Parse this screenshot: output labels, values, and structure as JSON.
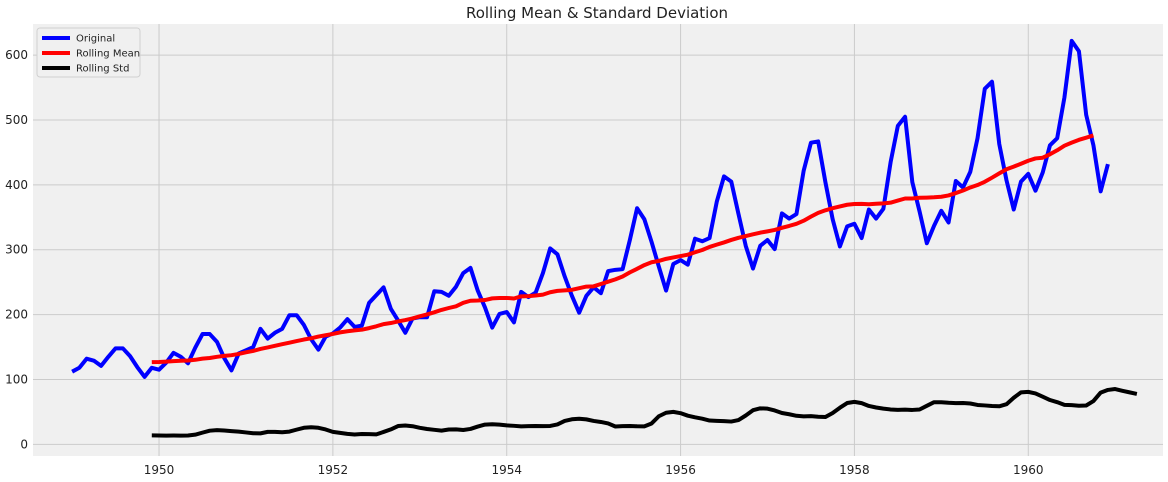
{
  "chart_data": {
    "type": "line",
    "title": "Rolling Mean & Standard Deviation",
    "xlabel": "",
    "ylabel": "",
    "xlim": [
      1948.55,
      1961.55
    ],
    "ylim": [
      -18,
      648
    ],
    "x_ticks": [
      1950,
      1952,
      1954,
      1956,
      1958,
      1960
    ],
    "y_ticks": [
      0,
      100,
      200,
      300,
      400,
      500,
      600
    ],
    "grid": true,
    "legend_position": "top-left",
    "x_start": 1949.0,
    "x_step": 0.08333,
    "series": [
      {
        "name": "Original",
        "color": "#0000ff",
        "values": [
          112,
          118,
          132,
          129,
          121,
          135,
          148,
          148,
          136,
          119,
          104,
          118,
          115,
          126,
          141,
          135,
          125,
          149,
          170,
          170,
          158,
          133,
          114,
          140,
          145,
          150,
          178,
          163,
          172,
          178,
          199,
          199,
          184,
          162,
          146,
          166,
          171,
          180,
          193,
          181,
          183,
          218,
          230,
          242,
          209,
          191,
          172,
          194,
          196,
          196,
          236,
          235,
          229,
          243,
          264,
          272,
          237,
          211,
          180,
          201,
          204,
          188,
          235,
          227,
          234,
          264,
          302,
          293,
          259,
          229,
          203,
          229,
          242,
          233,
          267,
          269,
          270,
          315,
          364,
          347,
          312,
          274,
          237,
          278,
          284,
          277,
          317,
          313,
          318,
          374,
          413,
          405,
          355,
          306,
          271,
          306,
          315,
          301,
          356,
          348,
          355,
          422,
          465,
          467,
          404,
          347,
          305,
          336,
          340,
          318,
          362,
          348,
          363,
          435,
          491,
          505,
          404,
          359,
          310,
          337,
          360,
          342,
          406,
          396,
          420,
          472,
          548,
          559,
          463,
          407,
          362,
          405,
          417,
          391,
          419,
          461,
          472,
          535,
          622,
          606,
          508,
          461,
          390,
          432
        ]
      },
      {
        "name": "Rolling Mean",
        "color": "#ff0000",
        "values": [
          null,
          null,
          null,
          null,
          null,
          null,
          null,
          null,
          null,
          null,
          null,
          126.67,
          126.92,
          127.58,
          128.33,
          128.83,
          129.17,
          130.33,
          132.17,
          133.08,
          134.92,
          136.42,
          137.42,
          139.33,
          141.83,
          144.0,
          147.08,
          149.33,
          151.92,
          154.33,
          156.75,
          159.17,
          161.58,
          163.42,
          166.17,
          168.17,
          170.17,
          172.58,
          174.33,
          175.67,
          176.75,
          179.17,
          182.0,
          185.33,
          187.0,
          189.42,
          191.58,
          194.08,
          197.33,
          200.25,
          203.5,
          207.25,
          210.17,
          212.83,
          218.17,
          221.33,
          221.75,
          222.42,
          225.0,
          225.5,
          225.67,
          224.83,
          228.17,
          228.5,
          229.42,
          230.75,
          234.42,
          236.58,
          237.33,
          238.17,
          240.67,
          243.17,
          243.58,
          247.17,
          250.75,
          254.33,
          258.75,
          265.08,
          270.58,
          276.33,
          280.67,
          282.75,
          285.92,
          288.08,
          290.25,
          292.33,
          296.08,
          299.58,
          304.33,
          307.83,
          311.25,
          315.08,
          318.42,
          321.0,
          323.75,
          326.33,
          328.33,
          330.5,
          333.83,
          336.75,
          340.0,
          344.75,
          351.0,
          356.83,
          360.83,
          364.0,
          366.75,
          369.33,
          370.58,
          370.67,
          370.17,
          370.83,
          371.42,
          372.58,
          375.83,
          379.0,
          379.0,
          380.08,
          380.42,
          380.83,
          381.67,
          383.67,
          387.33,
          391.25,
          396.0,
          399.75,
          404.75,
          411.08,
          417.67,
          424.08,
          428.08,
          432.58,
          437.17,
          440.75,
          441.83,
          447.17,
          453.33,
          460.42,
          465.08,
          469.42,
          472.75,
          476.17
        ]
      },
      {
        "name": "Rolling Std",
        "color": "#000000",
        "values": [
          null,
          null,
          null,
          null,
          null,
          null,
          null,
          null,
          null,
          null,
          null,
          13.72,
          13.67,
          13.4,
          13.55,
          13.44,
          13.66,
          14.9,
          18.03,
          21.02,
          21.8,
          21.3,
          20.4,
          19.64,
          18.3,
          17.06,
          16.87,
          19.2,
          19.28,
          18.59,
          19.61,
          22.67,
          25.47,
          26.26,
          25.5,
          22.88,
          19.14,
          17.66,
          16.08,
          15.16,
          15.94,
          15.66,
          15.39,
          19.08,
          22.99,
          28.2,
          28.96,
          27.93,
          25.44,
          23.62,
          22.37,
          21.15,
          22.86,
          23.09,
          22.12,
          23.74,
          27.36,
          30.42,
          30.96,
          30.34,
          29.14,
          28.54,
          27.6,
          27.98,
          28.29,
          28.13,
          28.29,
          30.62,
          36.03,
          38.6,
          39.42,
          38.44,
          36.05,
          34.47,
          32.25,
          27.51,
          27.99,
          28.17,
          27.79,
          27.72,
          32.16,
          43.3,
          48.7,
          50.05,
          48.03,
          44.16,
          41.61,
          39.53,
          36.71,
          36.2,
          35.71,
          35.1,
          37.36,
          44.44,
          52.56,
          55.5,
          54.96,
          52.18,
          48.24,
          46.35,
          43.98,
          43.08,
          43.43,
          42.53,
          42.13,
          48.33,
          56.41,
          63.66,
          65.42,
          63.49,
          59.13,
          56.79,
          55.06,
          53.74,
          53.03,
          53.54,
          53.01,
          53.68,
          59.38,
          64.93,
          64.84,
          64.06,
          63.56,
          63.66,
          62.92,
          60.68,
          59.94,
          59.04,
          58.64,
          61.85,
          71.8,
          80.14,
          80.87,
          78.44,
          73.49,
          68.31,
          64.98,
          60.76,
          60.46,
          59.45,
          59.87,
          66.67,
          79.78,
          83.86,
          85.25,
          82.53,
          80.07,
          77.74
        ]
      }
    ]
  }
}
